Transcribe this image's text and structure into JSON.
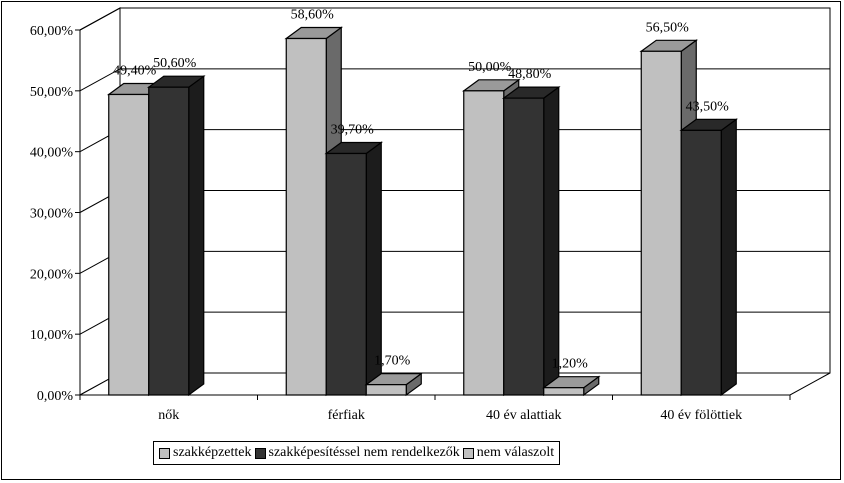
{
  "chart_data": {
    "type": "bar",
    "bar_style": "3d-clustered",
    "categories": [
      "nők",
      "férfiak",
      "40 év alattiak",
      "40 év fölöttiek"
    ],
    "series": [
      {
        "name": "szakképzettek",
        "values": [
          49.4,
          58.6,
          50.0,
          56.5
        ],
        "labels": [
          "49,40%",
          "58,60%",
          "50,00%",
          "56,50%"
        ],
        "color": "#c0c0c0"
      },
      {
        "name": "szakképesítéssel nem rendelkezők",
        "values": [
          50.6,
          39.7,
          48.8,
          43.5
        ],
        "labels": [
          "50,60%",
          "39,70%",
          "48,80%",
          "43,50%"
        ],
        "color": "#333333"
      },
      {
        "name": "nem válaszolt",
        "values": [
          null,
          1.7,
          1.2,
          null
        ],
        "labels": [
          "",
          "1,70%",
          "1,20%",
          ""
        ],
        "color": "#c0c0c0"
      }
    ],
    "y_ticks": [
      "0,00%",
      "10,00%",
      "20,00%",
      "30,00%",
      "40,00%",
      "50,00%",
      "60,00%"
    ],
    "ylim": [
      0,
      60
    ],
    "grid": true,
    "legend_position": "bottom",
    "title": "",
    "xlabel": "",
    "ylabel": ""
  }
}
